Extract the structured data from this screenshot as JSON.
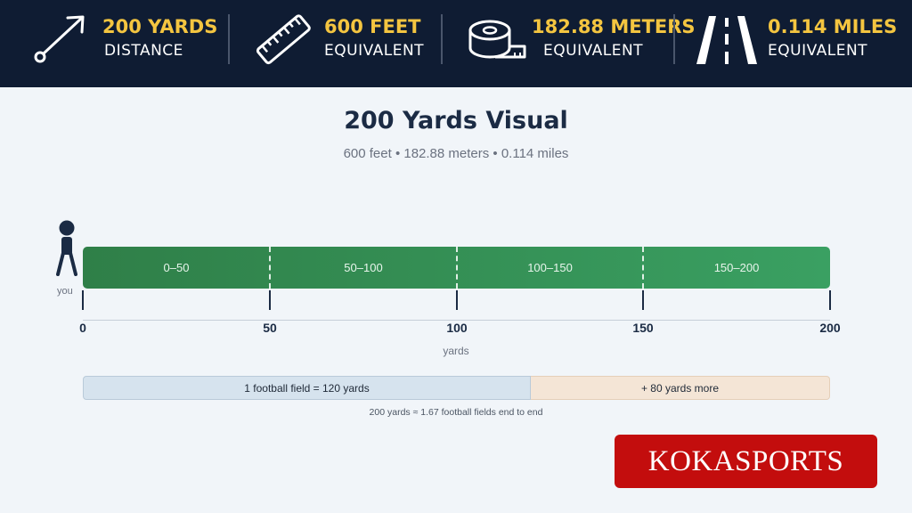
{
  "header": {
    "stats": [
      {
        "icon": "arrow-distance-icon",
        "value": "200 YARDS",
        "label": "DISTANCE"
      },
      {
        "icon": "ruler-icon",
        "value": "600 FEET",
        "label": "EQUIVALENT"
      },
      {
        "icon": "tape-measure-icon",
        "value": "182.88 METERS",
        "label": "EQUIVALENT"
      },
      {
        "icon": "road-icon",
        "value": "0.114 MILES",
        "label": "EQUIVALENT"
      }
    ]
  },
  "title": "200 Yards Visual",
  "subtitle": "600 feet • 182.88 meters • 0.114 miles",
  "figure": {
    "label": "you"
  },
  "bar": {
    "segments": [
      "0–50",
      "50–100",
      "100–150",
      "150–200"
    ]
  },
  "axis": {
    "ticks": [
      "0",
      "50",
      "100",
      "150",
      "200"
    ],
    "title": "yards"
  },
  "football": {
    "field_label": "1 football field = 120 yards",
    "extra_label": "+ 80 yards more",
    "field_yards": 120,
    "total_yards": 200,
    "note": "200 yards ≈ 1.67 football fields end to end"
  },
  "logo": "KOKASPORTS",
  "colors": {
    "header_bg": "#0f1c33",
    "accent_yellow": "#f4c540",
    "bar_green": "#3aa062",
    "field_blue": "#d6e3ee",
    "extra_peach": "#f4e5d6",
    "logo_red": "#c30d0d"
  }
}
